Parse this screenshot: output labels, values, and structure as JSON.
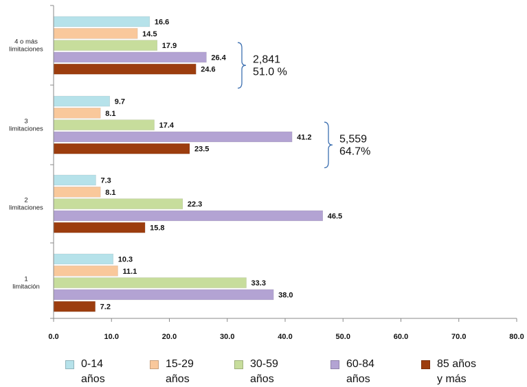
{
  "chart_data": {
    "type": "bar",
    "orientation": "horizontal",
    "categories": [
      "4 o más limitaciones",
      "3 limitaciones",
      "2 limitaciones",
      "1 limitación"
    ],
    "series": [
      {
        "name": "0-14 años",
        "color": "#b6e2ea",
        "values": [
          16.6,
          9.7,
          7.3,
          10.3
        ]
      },
      {
        "name": "15-29 años",
        "color": "#f9c89b",
        "values": [
          14.5,
          8.1,
          8.1,
          11.1
        ]
      },
      {
        "name": "30-59 años",
        "color": "#c7dd9c",
        "values": [
          17.9,
          17.4,
          22.3,
          33.3
        ]
      },
      {
        "name": "60-84 años",
        "color": "#b3a3d3",
        "values": [
          26.4,
          41.2,
          46.5,
          38.0
        ]
      },
      {
        "name": "85 años y más",
        "color": "#9c3d0e",
        "values": [
          24.6,
          23.5,
          15.8,
          7.2
        ]
      }
    ],
    "value_labels": [
      [
        "16.6",
        "9.7",
        "7.3",
        "10.3"
      ],
      [
        "14.5",
        "8.1",
        "8.1",
        "11.1"
      ],
      [
        "17.9",
        "17.4",
        "22.3",
        "33.3"
      ],
      [
        "26.4",
        "41.2",
        "46.5",
        "38.0"
      ],
      [
        "24.6",
        "23.5",
        "15.8",
        "7.2"
      ]
    ],
    "xlim": [
      0,
      80
    ],
    "xticks": [
      "0.0",
      "10.0",
      "20.0",
      "30.0",
      "40.0",
      "50.0",
      "60.0",
      "70.0",
      "80.0"
    ],
    "category_labels": [
      [
        "4 o más",
        "limitaciones"
      ],
      [
        "3",
        "limitaciones"
      ],
      [
        "2",
        "limitaciones"
      ],
      [
        "1",
        "limitación"
      ]
    ],
    "annotations": [
      {
        "category_index": 0,
        "lines": [
          "2,841",
          "51.0 %"
        ]
      },
      {
        "category_index": 1,
        "lines": [
          "5,559",
          "64.7%"
        ]
      }
    ],
    "legend": {
      "placement": "bottom",
      "items": [
        {
          "text": "0-14\naños",
          "color": "#b6e2ea"
        },
        {
          "text": "15-29\naños",
          "color": "#f9c89b"
        },
        {
          "text": "30-59\naños",
          "color": "#c7dd9c"
        },
        {
          "text": "60-84\naños",
          "color": "#b3a3d3"
        },
        {
          "text": "85 años\ny más",
          "color": "#9c3d0e"
        }
      ]
    },
    "grid": false,
    "title": "",
    "xlabel": "",
    "ylabel": ""
  }
}
